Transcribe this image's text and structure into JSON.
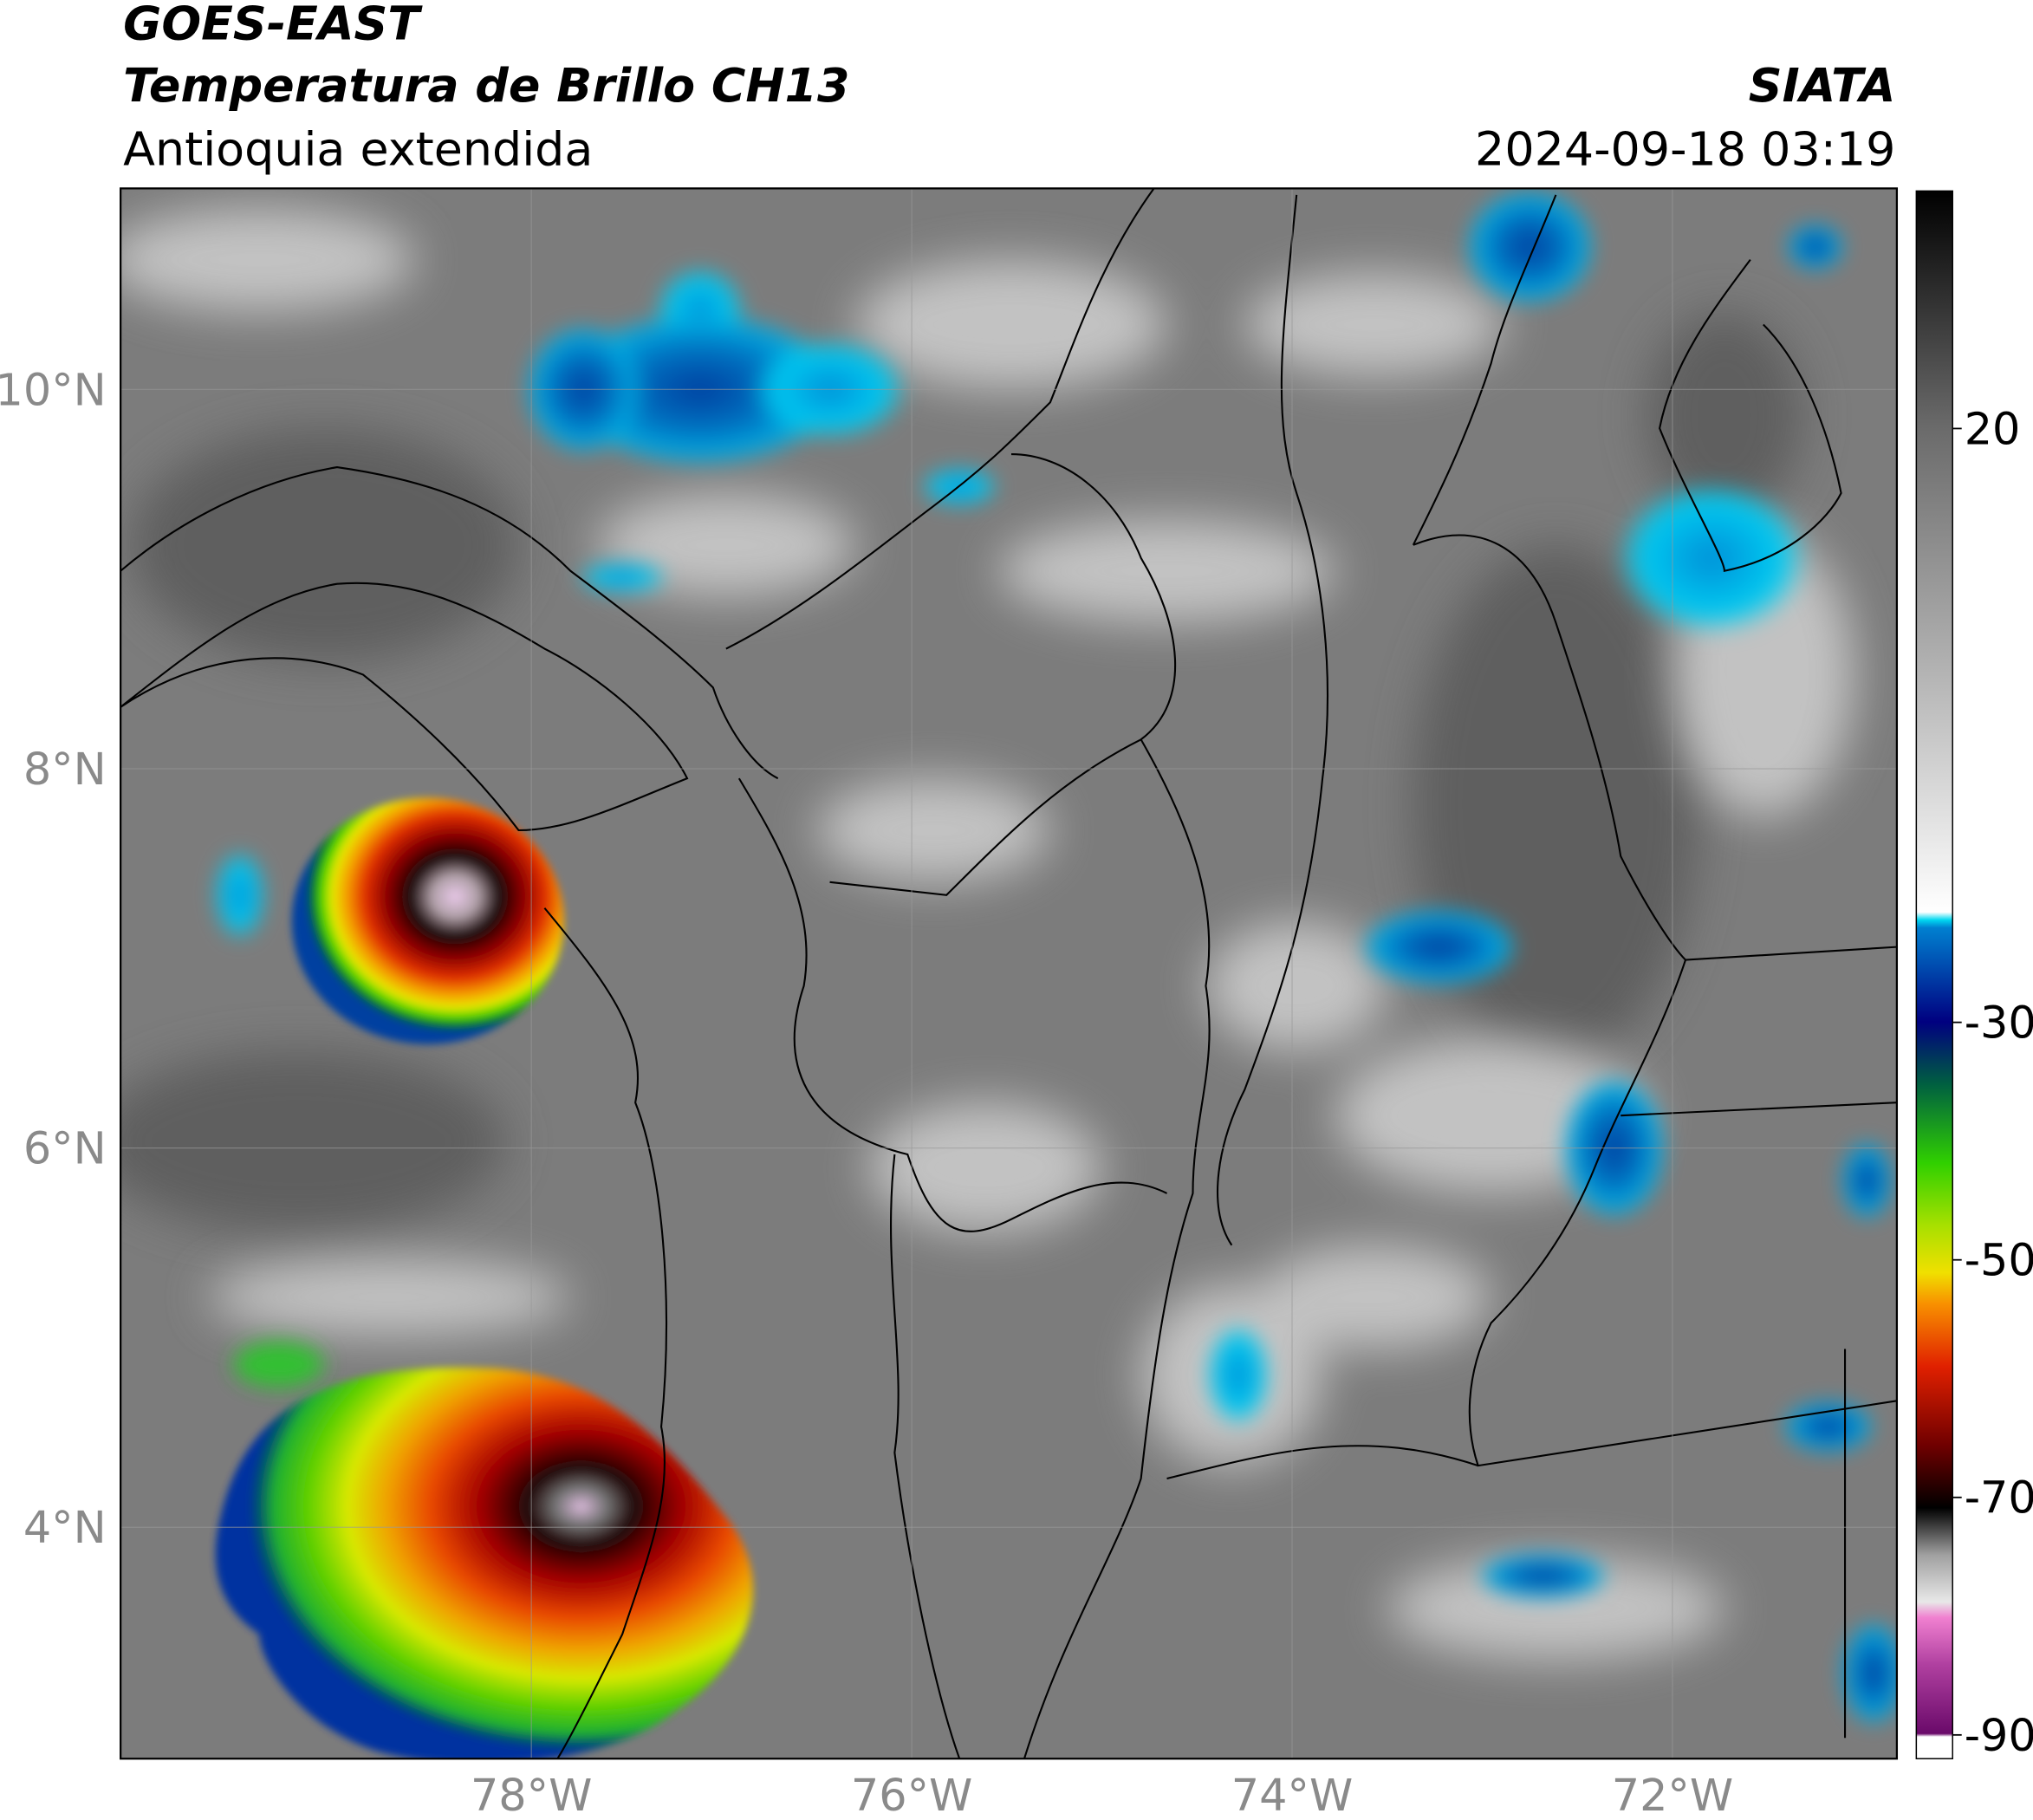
{
  "header": {
    "title": "GOES-EAST",
    "subtitle": "Temperatura de Brillo CH13",
    "region": "Antioquia extendida",
    "source": "SIATA",
    "datetime": "2024-09-18 03:19"
  },
  "map": {
    "xlim": [
      -80.16,
      -70.82
    ],
    "ylim": [
      2.78,
      11.06
    ],
    "xticks": [
      {
        "value": -78,
        "label": "78°W"
      },
      {
        "value": -76,
        "label": "76°W"
      },
      {
        "value": -74,
        "label": "74°W"
      },
      {
        "value": -72,
        "label": "72°W"
      }
    ],
    "yticks": [
      {
        "value": 4,
        "label": "4°N"
      },
      {
        "value": 6,
        "label": "6°N"
      },
      {
        "value": 8,
        "label": "8°N"
      },
      {
        "value": 10,
        "label": "10°N"
      }
    ],
    "grid": true
  },
  "colorbar": {
    "lim": [
      -92,
      40
    ],
    "ticks": [
      -90,
      -70,
      -50,
      -30,
      20
    ]
  }
}
